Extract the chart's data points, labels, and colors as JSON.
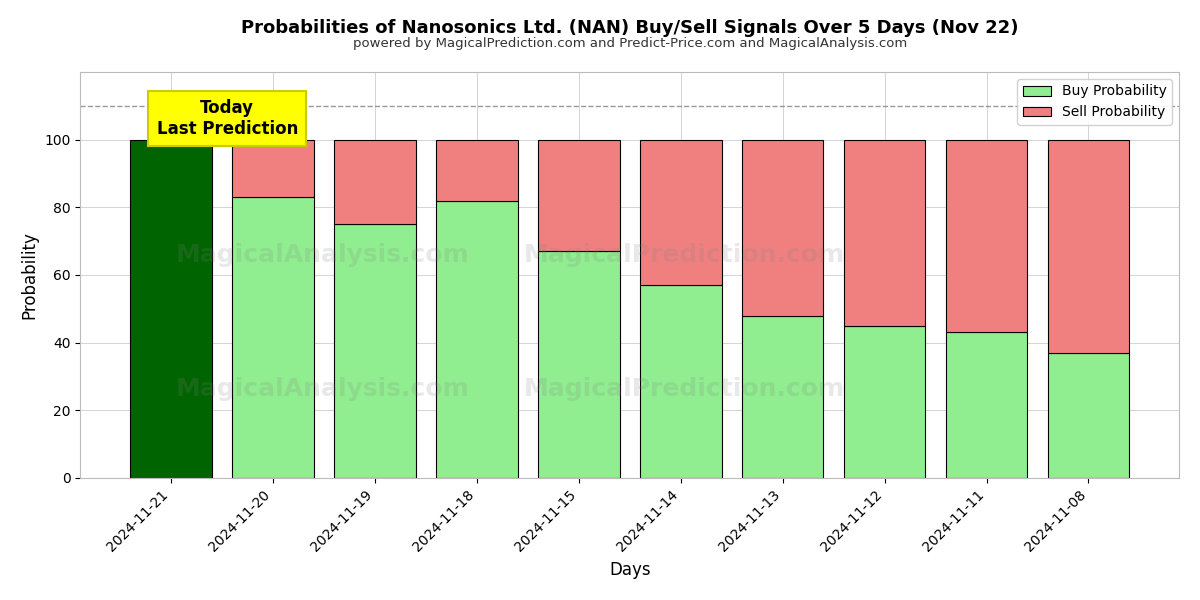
{
  "title": "Probabilities of Nanosonics Ltd. (NAN) Buy/Sell Signals Over 5 Days (Nov 22)",
  "subtitle": "powered by MagicalPrediction.com and Predict-Price.com and MagicalAnalysis.com",
  "xlabel": "Days",
  "ylabel": "Probability",
  "dates": [
    "2024-11-21",
    "2024-11-20",
    "2024-11-19",
    "2024-11-18",
    "2024-11-15",
    "2024-11-14",
    "2024-11-13",
    "2024-11-12",
    "2024-11-11",
    "2024-11-08"
  ],
  "buy_values": [
    100,
    83,
    75,
    82,
    67,
    57,
    48,
    45,
    43,
    37
  ],
  "sell_values": [
    0,
    17,
    25,
    18,
    33,
    43,
    52,
    55,
    57,
    63
  ],
  "today_bar_color": "#006400",
  "buy_color": "#90EE90",
  "sell_color": "#F08080",
  "today_annotation_bg": "#FFFF00",
  "today_annotation_text": "Today\nLast Prediction",
  "ylim": [
    0,
    120
  ],
  "yticks": [
    0,
    20,
    40,
    60,
    80,
    100
  ],
  "dashed_line_y": 110,
  "legend_labels": [
    "Buy Probability",
    "Sell Probability"
  ],
  "bar_edgecolor": "#000000",
  "bg_color": "#ffffff",
  "grid_color": "#aaaaaa"
}
